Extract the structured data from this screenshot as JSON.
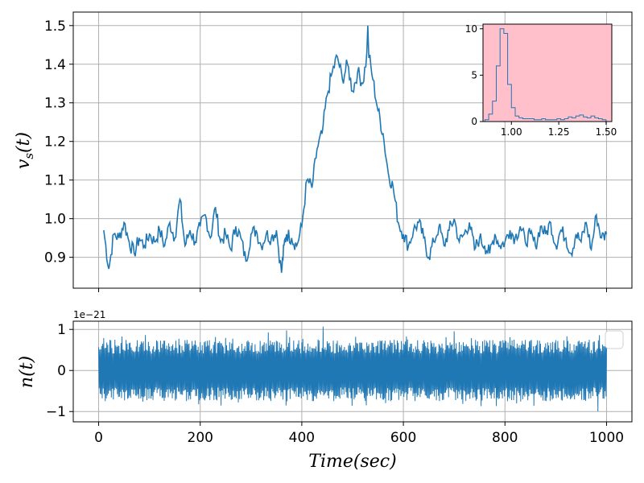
{
  "chart_data": [
    {
      "id": "top",
      "type": "line",
      "title": "",
      "xlabel": "",
      "ylabel": "v_s(t)",
      "xlim": [
        -50,
        1050
      ],
      "ylim": [
        0.82,
        1.535
      ],
      "grid": true,
      "xticks": [
        0,
        200,
        400,
        600,
        800,
        1000
      ],
      "xtick_labels_visible": false,
      "yticks": [
        0.9,
        1.0,
        1.1,
        1.2,
        1.3,
        1.4,
        1.5
      ],
      "ytick_labels": [
        "0.9",
        "1.0",
        "1.1",
        "1.2",
        "1.3",
        "1.4",
        "1.5"
      ],
      "color": "#1f77b4",
      "x": [
        10,
        20,
        30,
        40,
        50,
        60,
        70,
        80,
        90,
        100,
        110,
        120,
        130,
        140,
        150,
        160,
        170,
        180,
        190,
        200,
        210,
        220,
        230,
        240,
        250,
        260,
        270,
        280,
        290,
        300,
        310,
        320,
        330,
        340,
        350,
        360,
        365,
        370,
        380,
        390,
        400,
        410,
        420,
        430,
        440,
        450,
        460,
        470,
        480,
        490,
        500,
        510,
        520,
        530,
        540,
        550,
        560,
        570,
        580,
        590,
        600,
        610,
        620,
        630,
        640,
        650,
        660,
        670,
        680,
        690,
        700,
        710,
        720,
        730,
        740,
        750,
        760,
        770,
        780,
        790,
        800,
        810,
        820,
        830,
        840,
        850,
        860,
        870,
        880,
        890,
        900,
        910,
        920,
        930,
        940,
        950,
        960,
        970,
        980,
        990,
        1000
      ],
      "y": [
        0.97,
        0.87,
        0.96,
        0.95,
        0.99,
        0.94,
        0.91,
        0.95,
        0.93,
        0.96,
        0.94,
        0.97,
        0.93,
        0.99,
        0.95,
        1.05,
        0.93,
        0.97,
        0.94,
        0.98,
        1.01,
        0.95,
        1.03,
        0.94,
        0.96,
        0.92,
        0.98,
        0.95,
        0.89,
        0.96,
        0.97,
        0.93,
        0.96,
        0.95,
        0.97,
        0.86,
        0.93,
        0.96,
        0.95,
        0.93,
        0.98,
        1.1,
        1.08,
        1.18,
        1.22,
        1.32,
        1.38,
        1.42,
        1.36,
        1.4,
        1.33,
        1.38,
        1.35,
        1.44,
        1.36,
        1.28,
        1.22,
        1.12,
        1.08,
        0.99,
        0.96,
        0.93,
        0.97,
        0.99,
        0.95,
        0.9,
        0.94,
        0.98,
        0.93,
        0.97,
        1.0,
        0.94,
        0.96,
        0.99,
        0.92,
        0.95,
        0.93,
        0.91,
        0.96,
        0.93,
        0.94,
        0.97,
        0.95,
        0.98,
        0.94,
        0.96,
        0.93,
        0.98,
        0.96,
        0.99,
        0.93,
        0.97,
        0.95,
        0.91,
        0.96,
        0.94,
        0.99,
        0.92,
        1.01,
        0.95,
        0.96
      ],
      "peak": {
        "x": 530,
        "y": 1.5
      }
    },
    {
      "id": "inset",
      "type": "bar",
      "title": "",
      "histogram": true,
      "bin_width": 0.02,
      "xlim": [
        0.85,
        1.53
      ],
      "ylim": [
        0,
        10.5
      ],
      "xticks": [
        1.0,
        1.25,
        1.5
      ],
      "xtick_labels": [
        "1.00",
        "1.25",
        "1.50"
      ],
      "yticks": [
        0,
        5,
        10
      ],
      "ytick_labels": [
        "0",
        "5",
        "10"
      ],
      "background": "#ffc0cb",
      "edge_color": "#1f77b4",
      "bins": [
        0.86,
        0.88,
        0.9,
        0.92,
        0.94,
        0.96,
        0.98,
        1.0,
        1.02,
        1.04,
        1.06,
        1.08,
        1.1,
        1.12,
        1.14,
        1.16,
        1.18,
        1.2,
        1.22,
        1.24,
        1.26,
        1.28,
        1.3,
        1.32,
        1.34,
        1.36,
        1.38,
        1.4,
        1.42,
        1.44,
        1.46,
        1.48
      ],
      "values": [
        0.2,
        0.8,
        2.2,
        6.0,
        10.0,
        9.5,
        4.0,
        1.5,
        0.6,
        0.4,
        0.3,
        0.3,
        0.3,
        0.2,
        0.2,
        0.3,
        0.2,
        0.2,
        0.2,
        0.3,
        0.2,
        0.3,
        0.5,
        0.4,
        0.6,
        0.7,
        0.5,
        0.4,
        0.6,
        0.4,
        0.3,
        0.2
      ]
    },
    {
      "id": "bottom",
      "type": "line",
      "title": "",
      "xlabel": "Time(sec)",
      "ylabel": "n(t)",
      "offset_label": "1e−21",
      "xlim": [
        -50,
        1050
      ],
      "ylim": [
        -1.25,
        1.2
      ],
      "grid": true,
      "legend": "top-right (empty)",
      "xticks": [
        0,
        200,
        400,
        600,
        800,
        1000
      ],
      "xtick_labels": [
        "0",
        "200",
        "400",
        "600",
        "800",
        "1000"
      ],
      "yticks": [
        -1,
        0,
        1
      ],
      "ytick_labels": [
        "−1",
        "0",
        "1"
      ],
      "color": "#1f77b4",
      "noise_amplitude": {
        "typical": 0.75,
        "peak": 1.1
      }
    }
  ]
}
